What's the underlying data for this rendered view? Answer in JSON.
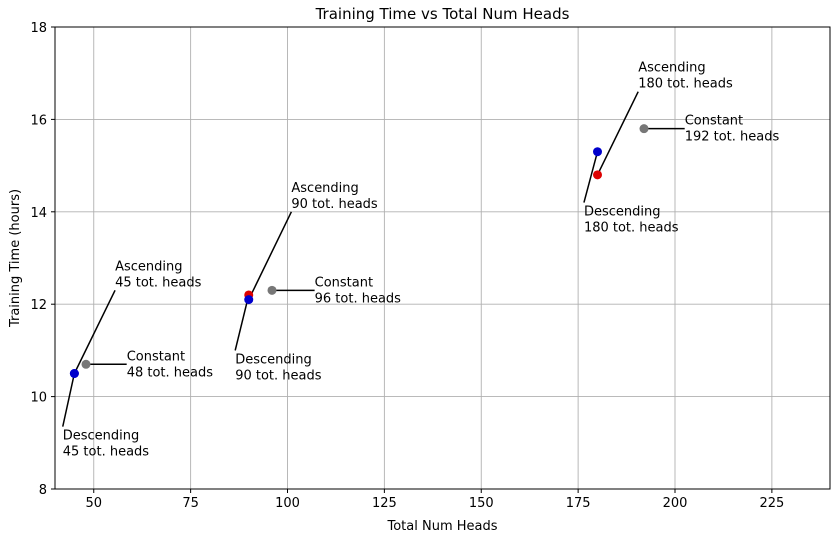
{
  "chart_data": {
    "type": "scatter",
    "title": "Training Time vs Total Num Heads",
    "xlabel": "Total Num Heads",
    "ylabel": "Training Time (hours)",
    "xlim": [
      40,
      240
    ],
    "ylim": [
      8,
      18
    ],
    "xticks": [
      50,
      75,
      100,
      125,
      150,
      175,
      200,
      225
    ],
    "yticks": [
      8,
      10,
      12,
      14,
      16,
      18
    ],
    "grid": true,
    "points": [
      {
        "x": 45,
        "y": 10.5,
        "color": "#0000cc",
        "label": [
          "Ascending",
          "45 tot. heads"
        ],
        "text_x": 55.5,
        "text_y": 12.3,
        "text_valign": "bottom"
      },
      {
        "x": 45,
        "y": 10.5,
        "color": "#0000cc",
        "label": [
          "Descending",
          "45 tot. heads"
        ],
        "text_x": 42,
        "text_y": 9.35,
        "text_valign": "top"
      },
      {
        "x": 48,
        "y": 10.7,
        "color": "#777777",
        "label": [
          "Constant",
          "48 tot. heads"
        ],
        "text_x": 58.5,
        "text_y": 10.7,
        "text_valign": "center"
      },
      {
        "x": 90,
        "y": 12.2,
        "color": "#dd0000",
        "label": [
          "Descending",
          "90 tot. heads"
        ],
        "text_x": 86.5,
        "text_y": 11.0,
        "text_valign": "top"
      },
      {
        "x": 90,
        "y": 12.1,
        "color": "#0000cc",
        "label": [
          "Ascending",
          "90 tot. heads"
        ],
        "text_x": 101,
        "text_y": 14.0,
        "text_valign": "bottom"
      },
      {
        "x": 96,
        "y": 12.3,
        "color": "#777777",
        "label": [
          "Constant",
          "96 tot. heads"
        ],
        "text_x": 107,
        "text_y": 12.3,
        "text_valign": "center"
      },
      {
        "x": 180,
        "y": 15.3,
        "color": "#0000cc",
        "label": [
          "Descending",
          "180 tot. heads"
        ],
        "text_x": 176.5,
        "text_y": 14.2,
        "text_valign": "top"
      },
      {
        "x": 180,
        "y": 14.8,
        "color": "#dd0000",
        "label": [
          "Ascending",
          "180 tot. heads"
        ],
        "text_x": 190.5,
        "text_y": 16.6,
        "text_valign": "bottom"
      },
      {
        "x": 192,
        "y": 15.8,
        "color": "#777777",
        "label": [
          "Constant",
          "192 tot. heads"
        ],
        "text_x": 202.5,
        "text_y": 15.8,
        "text_valign": "center"
      }
    ]
  }
}
